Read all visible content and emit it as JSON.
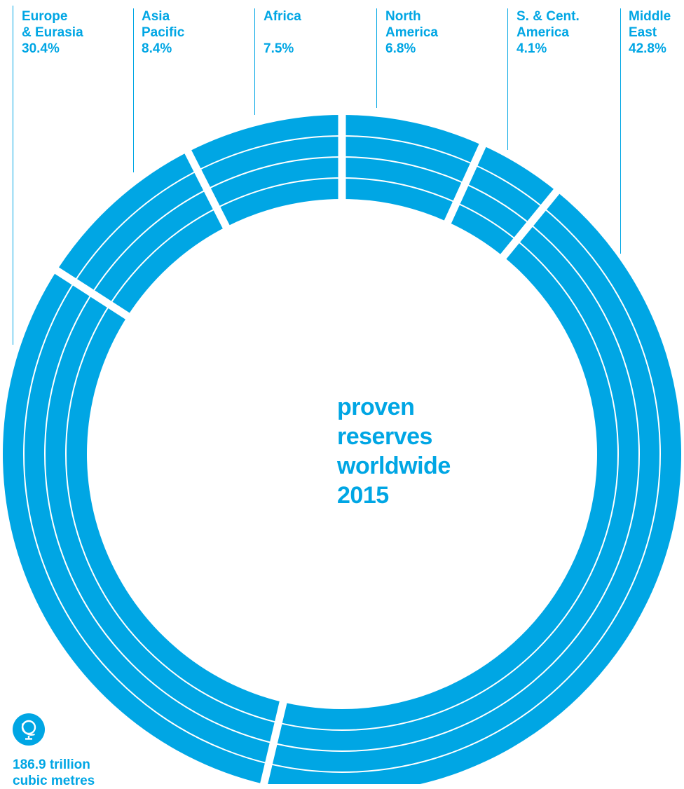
{
  "chart_data": {
    "type": "pie",
    "style": "donut",
    "ring_bands": 4,
    "color": "#00a6e4",
    "slices": [
      {
        "label_lines": [
          "Europe",
          "& Eurasia"
        ],
        "value_text": "30.4%",
        "value": 30.4
      },
      {
        "label_lines": [
          "Asia",
          "Pacific"
        ],
        "value_text": "8.4%",
        "value": 8.4
      },
      {
        "label_lines": [
          "Africa",
          ""
        ],
        "value_text": "7.5%",
        "value": 7.5
      },
      {
        "label_lines": [
          "North",
          "America"
        ],
        "value_text": "6.8%",
        "value": 6.8
      },
      {
        "label_lines": [
          "S. & Cent.",
          "America"
        ],
        "value_text": "4.1%",
        "value": 4.1
      },
      {
        "label_lines": [
          "Middle",
          "East"
        ],
        "value_text": "42.8%",
        "value": 42.8
      }
    ]
  },
  "center": {
    "line1": "proven",
    "line2": "reserves",
    "line3": "worldwide",
    "line4": "2015"
  },
  "footnote": {
    "icon": "globe-icon",
    "line1": "186.9 trillion",
    "line2": "cubic metres"
  }
}
